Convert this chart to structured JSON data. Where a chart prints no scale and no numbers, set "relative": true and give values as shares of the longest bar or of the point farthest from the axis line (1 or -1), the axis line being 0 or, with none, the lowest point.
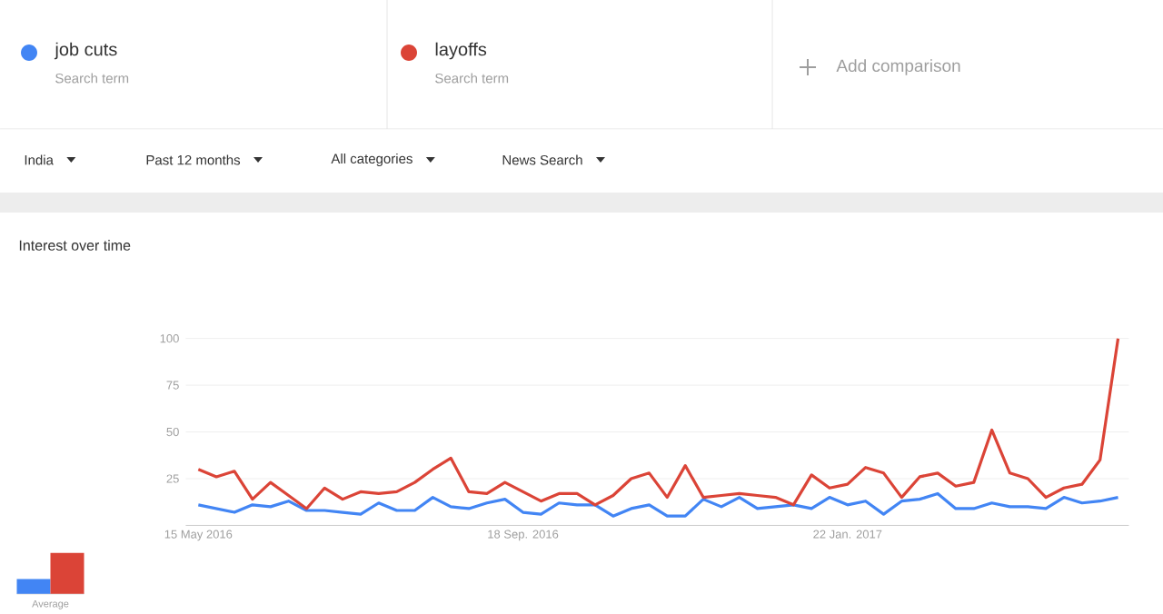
{
  "chart_data": [
    {
      "type": "line",
      "title": "Interest over time",
      "categories": [
        "15 May 2016",
        null,
        null,
        null,
        null,
        null,
        null,
        null,
        null,
        null,
        null,
        null,
        null,
        null,
        null,
        null,
        null,
        null,
        "18 Sep. 2016",
        null,
        null,
        null,
        null,
        null,
        null,
        null,
        null,
        null,
        null,
        null,
        null,
        null,
        null,
        null,
        null,
        null,
        "22 Jan. 2017",
        null,
        null,
        null,
        null,
        null,
        null,
        null,
        null,
        null,
        null,
        null,
        null,
        null,
        null,
        null
      ],
      "series": [
        {
          "name": "job cuts",
          "color": "#4285f4",
          "values": [
            11,
            9,
            7,
            11,
            10,
            13,
            8,
            8,
            7,
            6,
            12,
            8,
            8,
            15,
            10,
            9,
            12,
            14,
            7,
            6,
            12,
            11,
            11,
            5,
            9,
            11,
            5,
            5,
            14,
            10,
            15,
            9,
            10,
            11,
            9,
            15,
            11,
            13,
            6,
            13,
            14,
            17,
            9,
            9,
            12,
            10,
            10,
            9,
            15,
            12,
            13,
            15
          ]
        },
        {
          "name": "layoffs",
          "color": "#db4437",
          "values": [
            30,
            26,
            29,
            14,
            23,
            16,
            9,
            20,
            14,
            18,
            17,
            18,
            23,
            30,
            36,
            18,
            17,
            23,
            18,
            13,
            17,
            17,
            11,
            16,
            25,
            28,
            15,
            32,
            15,
            16,
            17,
            16,
            15,
            11,
            27,
            20,
            22,
            31,
            28,
            15,
            26,
            28,
            21,
            23,
            51,
            28,
            25,
            15,
            20,
            22,
            35,
            100
          ]
        }
      ],
      "ylim": [
        0,
        100
      ],
      "yticks": [
        25,
        50,
        75,
        100
      ],
      "grid": "y",
      "legend": "top",
      "annotations": [
        "Search term",
        "Search term",
        "Add comparison",
        "India",
        "Past 12 months",
        "All categories",
        "News Search"
      ]
    },
    {
      "type": "bar",
      "categories": [
        "Average"
      ],
      "series": [
        {
          "color": "#4285f4",
          "values": [
            0.36
          ]
        },
        {
          "color": "#db4437",
          "values": [
            1
          ]
        }
      ],
      "relative": true
    }
  ]
}
